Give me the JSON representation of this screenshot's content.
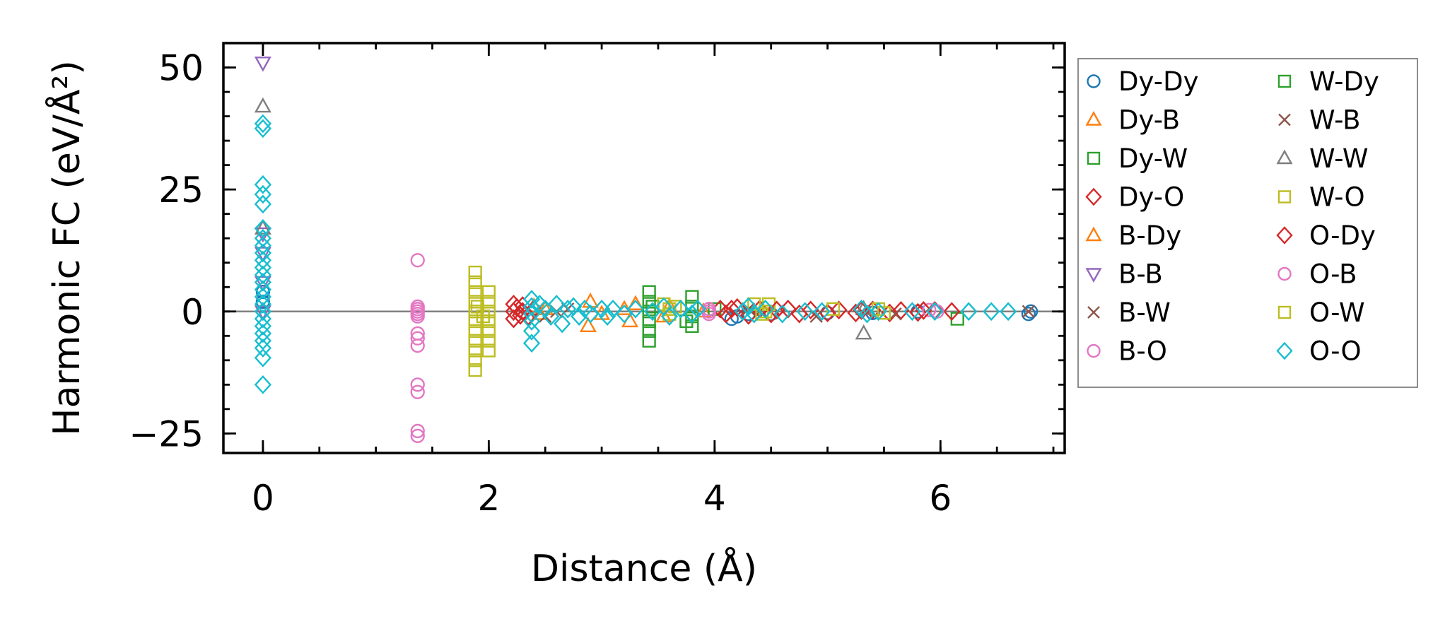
{
  "chart_data": {
    "type": "scatter",
    "title": "",
    "xlabel": "Distance (Å)",
    "ylabel": "Harmonic FC (eV/Å²)",
    "xlim": [
      -0.35,
      7.1
    ],
    "ylim": [
      -29,
      55
    ],
    "xticks": [
      0,
      2,
      4,
      6
    ],
    "xtick_labels": [
      "0",
      "2",
      "4",
      "6"
    ],
    "yticks": [
      -25,
      0,
      25,
      50
    ],
    "ytick_labels": [
      "−25",
      "0",
      "25",
      "50"
    ],
    "reference_line_y": 0,
    "legend_position": "outside right",
    "series": [
      {
        "name": "Dy-Dy",
        "marker": "circle",
        "color": "#1f77b4",
        "points": [
          [
            0,
            4
          ],
          [
            0,
            2
          ],
          [
            4.15,
            -1.5
          ],
          [
            4.2,
            -1
          ],
          [
            4.3,
            -0.5
          ],
          [
            4.5,
            -0.5
          ],
          [
            5.0,
            -0.3
          ],
          [
            5.4,
            -0.3
          ],
          [
            5.8,
            0
          ],
          [
            6.78,
            -0.5
          ],
          [
            6.8,
            0
          ]
        ]
      },
      {
        "name": "Dy-B",
        "marker": "triangle-up",
        "color": "#ff7f0e",
        "points": [
          [
            2.4,
            1
          ],
          [
            2.45,
            -0.5
          ],
          [
            2.88,
            -3
          ],
          [
            2.9,
            2
          ],
          [
            3.25,
            -2
          ],
          [
            3.3,
            1.5
          ],
          [
            3.55,
            -1
          ],
          [
            3.6,
            1
          ],
          [
            3.9,
            0
          ]
        ]
      },
      {
        "name": "Dy-W",
        "marker": "square",
        "color": "#2ca02c",
        "points": [
          [
            3.42,
            4
          ],
          [
            3.42,
            2
          ],
          [
            3.42,
            0
          ],
          [
            3.42,
            -2
          ],
          [
            3.42,
            -4
          ],
          [
            3.42,
            -6
          ],
          [
            3.8,
            3
          ],
          [
            3.8,
            1
          ],
          [
            3.8,
            -1
          ],
          [
            3.8,
            -3
          ],
          [
            4.0,
            0.5
          ],
          [
            6.15,
            -1.5
          ]
        ]
      },
      {
        "name": "Dy-O",
        "marker": "diamond",
        "color": "#d62728",
        "points": [
          [
            2.22,
            1.5
          ],
          [
            2.22,
            0
          ],
          [
            2.22,
            -1.5
          ],
          [
            2.25,
            0.8
          ],
          [
            2.28,
            -0.8
          ],
          [
            2.3,
            1.2
          ],
          [
            2.35,
            -1
          ],
          [
            2.4,
            0.5
          ],
          [
            4.05,
            0.5
          ],
          [
            4.1,
            -0.5
          ],
          [
            4.2,
            0.8
          ],
          [
            4.3,
            -0.8
          ],
          [
            4.4,
            0.5
          ],
          [
            4.5,
            -0.5
          ],
          [
            4.65,
            0.5
          ],
          [
            4.75,
            -0.5
          ],
          [
            4.85,
            0.3
          ],
          [
            5.0,
            -0.3
          ],
          [
            5.1,
            0.3
          ],
          [
            5.25,
            -0.3
          ],
          [
            5.4,
            0.3
          ],
          [
            5.55,
            -0.3
          ],
          [
            5.65,
            0.2
          ],
          [
            5.8,
            -0.2
          ],
          [
            5.95,
            0.2
          ],
          [
            6.1,
            0
          ]
        ]
      },
      {
        "name": "B-Dy",
        "marker": "triangle-up",
        "color": "#ff7f0e",
        "points": [
          [
            2.5,
            0.5
          ],
          [
            3.0,
            -0.5
          ],
          [
            3.2,
            0.5
          ]
        ]
      },
      {
        "name": "B-B",
        "marker": "triangle-down",
        "color": "#9467bd",
        "points": [
          [
            0,
            51
          ],
          [
            0,
            16
          ],
          [
            0,
            12
          ],
          [
            0,
            6
          ],
          [
            0,
            0
          ]
        ]
      },
      {
        "name": "B-W",
        "marker": "x",
        "color": "#8c564b",
        "points": [
          [
            2.5,
            -1
          ],
          [
            2.7,
            0.5
          ],
          [
            4.3,
            0.5
          ],
          [
            4.9,
            -1
          ],
          [
            5.6,
            -0.5
          ],
          [
            6.78,
            0
          ]
        ]
      },
      {
        "name": "B-O",
        "marker": "circle",
        "color": "#e377c2",
        "points": [
          [
            1.37,
            10.5
          ],
          [
            1.37,
            1
          ],
          [
            1.37,
            0
          ],
          [
            1.37,
            -1
          ],
          [
            1.37,
            -4.5
          ],
          [
            1.37,
            -5.5
          ],
          [
            1.37,
            -7
          ],
          [
            1.37,
            -15
          ],
          [
            1.37,
            -16.5
          ],
          [
            1.37,
            -24.5
          ],
          [
            1.37,
            -25.5
          ],
          [
            3.95,
            0.5
          ],
          [
            3.95,
            -0.5
          ],
          [
            5.9,
            0.3
          ],
          [
            5.97,
            0
          ]
        ]
      },
      {
        "name": "W-Dy",
        "marker": "square",
        "color": "#2ca02c",
        "points": [
          [
            3.45,
            1
          ],
          [
            3.75,
            -2
          ]
        ]
      },
      {
        "name": "W-B",
        "marker": "x",
        "color": "#8c564b",
        "points": [
          [
            2.6,
            0
          ],
          [
            4.4,
            0
          ]
        ]
      },
      {
        "name": "W-W",
        "marker": "triangle-up",
        "color": "#7f7f7f",
        "points": [
          [
            0,
            42
          ],
          [
            0,
            17
          ],
          [
            5.32,
            -4.5
          ],
          [
            5.32,
            0.5
          ]
        ]
      },
      {
        "name": "W-O",
        "marker": "square",
        "color": "#bcbd22",
        "points": [
          [
            1.88,
            8
          ],
          [
            1.88,
            6
          ],
          [
            1.88,
            4
          ],
          [
            1.88,
            2
          ],
          [
            1.88,
            0
          ],
          [
            1.88,
            -2
          ],
          [
            1.88,
            -4
          ],
          [
            1.88,
            -6
          ],
          [
            1.88,
            -8
          ],
          [
            1.88,
            -10
          ],
          [
            1.88,
            -12
          ],
          [
            2.0,
            4
          ],
          [
            2.0,
            2
          ],
          [
            2.0,
            0
          ],
          [
            2.0,
            -2
          ],
          [
            2.0,
            -4
          ],
          [
            2.0,
            -6
          ],
          [
            2.0,
            -8
          ],
          [
            3.55,
            1.5
          ],
          [
            3.6,
            -0.5
          ],
          [
            3.65,
            1
          ],
          [
            4.35,
            1.5
          ],
          [
            4.42,
            -0.5
          ],
          [
            4.48,
            1.5
          ],
          [
            5.05,
            0.5
          ],
          [
            5.45,
            0.5
          ],
          [
            5.5,
            -0.3
          ]
        ]
      },
      {
        "name": "O-Dy",
        "marker": "diamond",
        "color": "#d62728",
        "points": [
          [
            2.3,
            0
          ],
          [
            4.15,
            0.5
          ],
          [
            4.55,
            0.3
          ],
          [
            5.3,
            0.2
          ],
          [
            5.85,
            0.2
          ]
        ]
      },
      {
        "name": "O-B",
        "marker": "circle",
        "color": "#e377c2",
        "points": [
          [
            1.37,
            0.5
          ],
          [
            1.37,
            -0.5
          ],
          [
            3.95,
            0
          ]
        ]
      },
      {
        "name": "O-W",
        "marker": "square",
        "color": "#bcbd22",
        "points": [
          [
            1.9,
            1
          ],
          [
            1.95,
            -1
          ],
          [
            3.6,
            0.5
          ],
          [
            4.45,
            0
          ]
        ]
      },
      {
        "name": "O-O",
        "marker": "diamond",
        "color": "#17becf",
        "points": [
          [
            0,
            38.5
          ],
          [
            0,
            37.5
          ],
          [
            0,
            26
          ],
          [
            0,
            24
          ],
          [
            0,
            22
          ],
          [
            0,
            17
          ],
          [
            0,
            15
          ],
          [
            0,
            13.5
          ],
          [
            0,
            12
          ],
          [
            0,
            10.5
          ],
          [
            0,
            9
          ],
          [
            0,
            7.5
          ],
          [
            0,
            6
          ],
          [
            0,
            4.5
          ],
          [
            0,
            3
          ],
          [
            0,
            1.5
          ],
          [
            0,
            0
          ],
          [
            0,
            -1.5
          ],
          [
            0,
            -3
          ],
          [
            0,
            -4.5
          ],
          [
            0,
            -6
          ],
          [
            0,
            -7.5
          ],
          [
            0,
            -9.5
          ],
          [
            0,
            -15
          ],
          [
            2.38,
            2.5
          ],
          [
            2.38,
            1
          ],
          [
            2.38,
            -0.5
          ],
          [
            2.38,
            -2
          ],
          [
            2.38,
            -4
          ],
          [
            2.38,
            -6.5
          ],
          [
            2.45,
            1.5
          ],
          [
            2.5,
            0.5
          ],
          [
            2.55,
            -1
          ],
          [
            2.6,
            1.5
          ],
          [
            2.65,
            -2.5
          ],
          [
            2.7,
            0.5
          ],
          [
            2.75,
            1
          ],
          [
            2.8,
            -1
          ],
          [
            2.85,
            0.5
          ],
          [
            2.9,
            -0.5
          ],
          [
            3.0,
            0.5
          ],
          [
            3.05,
            -1
          ],
          [
            3.1,
            0.5
          ],
          [
            3.2,
            -0.5
          ],
          [
            3.3,
            0.5
          ],
          [
            3.45,
            0
          ],
          [
            3.55,
            1
          ],
          [
            3.6,
            -1
          ],
          [
            3.7,
            0.5
          ],
          [
            3.8,
            -0.5
          ],
          [
            3.85,
            0.5
          ],
          [
            4.25,
            0
          ],
          [
            4.3,
            1
          ],
          [
            4.35,
            -0.5
          ],
          [
            4.45,
            0.5
          ],
          [
            4.6,
            -0.5
          ],
          [
            4.8,
            0
          ],
          [
            4.95,
            0
          ],
          [
            5.3,
            0.5
          ],
          [
            5.35,
            -0.5
          ],
          [
            5.45,
            0
          ],
          [
            5.75,
            0
          ],
          [
            5.95,
            0
          ],
          [
            6.25,
            0
          ],
          [
            6.45,
            0
          ],
          [
            6.6,
            0
          ]
        ]
      }
    ]
  }
}
